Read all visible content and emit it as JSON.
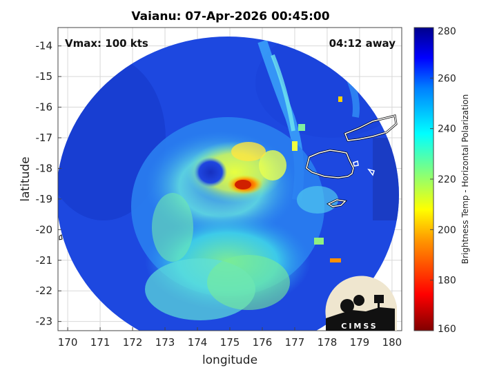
{
  "title": "Vaianu: 07-Apr-2026 00:45:00",
  "vmax_text": "Vmax: 100 kts",
  "time_text": "04:12 away",
  "x_axis": {
    "label": "longitude",
    "range": [
      169.7,
      180.3
    ],
    "ticks": [
      "170",
      "171",
      "172",
      "173",
      "174",
      "175",
      "176",
      "177",
      "178",
      "179",
      "180"
    ]
  },
  "y_axis": {
    "label": "latitude",
    "range": [
      -23.3,
      -13.4
    ],
    "ticks": [
      "-14",
      "-15",
      "-16",
      "-17",
      "-18",
      "-19",
      "-20",
      "-21",
      "-22",
      "-23"
    ]
  },
  "colorbar": {
    "label": "Brightness Temp - Horizontal Polarization",
    "range": [
      160,
      280
    ],
    "ticks": [
      "160",
      "180",
      "200",
      "220",
      "240",
      "260",
      "280"
    ],
    "colormap": "jet-reversed"
  },
  "storm": {
    "name": "Vaianu",
    "eye_lon": 174.5,
    "eye_lat": -18.1
  },
  "logo_text": "CIMSS",
  "colors": {
    "background_field": "#1e4fe6",
    "outer_blue": "#0a2ea8",
    "coast": "#ffffff"
  }
}
